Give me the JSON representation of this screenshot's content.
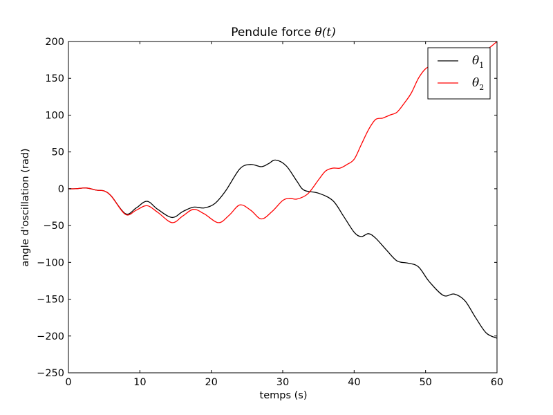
{
  "chart_data": {
    "type": "line",
    "title": "Pendule force θ(t)",
    "title_text": "Pendule force ",
    "title_math": "θ(t)",
    "xlabel": "temps (s)",
    "ylabel": "angle d'oscillation (rad)",
    "xlim": [
      0,
      60
    ],
    "ylim": [
      -250,
      200
    ],
    "xticks": [
      0,
      10,
      20,
      30,
      40,
      50,
      60
    ],
    "yticks": [
      200,
      150,
      100,
      50,
      0,
      -50,
      -100,
      -150,
      -200,
      -250
    ],
    "xtick_labels": [
      "0",
      "10",
      "20",
      "30",
      "40",
      "50",
      "60"
    ],
    "ytick_labels": [
      "200",
      "150",
      "100",
      "50",
      "0",
      "−50",
      "−100",
      "−150",
      "−200",
      "−250"
    ],
    "grid": false,
    "legend_position": "upper right",
    "series": [
      {
        "name": "θ1",
        "label_base": "θ",
        "label_sub": "1",
        "color": "#000000",
        "x": [
          0,
          1,
          2.5,
          4,
          5,
          6,
          8,
          9.5,
          11,
          12.5,
          14.5,
          16,
          17.5,
          19,
          20.5,
          22,
          24,
          25.5,
          27,
          28,
          29,
          30.5,
          32,
          33,
          35,
          37,
          38.5,
          40,
          41,
          42,
          43,
          44.5,
          46,
          47.5,
          49,
          50.5,
          52.5,
          54,
          55.5,
          57,
          58.5,
          60
        ],
        "y": [
          0,
          0,
          1,
          -2,
          -3,
          -10,
          -34,
          -26,
          -17,
          -28,
          -39,
          -31,
          -25,
          -26,
          -20,
          -3,
          27,
          33,
          30,
          34,
          39,
          31,
          10,
          -2,
          -6,
          -16,
          -37,
          -59,
          -65,
          -61,
          -67,
          -83,
          -98,
          -101,
          -106,
          -126,
          -145,
          -143,
          -152,
          -175,
          -196,
          -203
        ]
      },
      {
        "name": "θ2",
        "label_base": "θ",
        "label_sub": "2",
        "color": "#ff0000",
        "x": [
          0,
          1,
          2.5,
          4,
          5,
          6,
          8,
          9.5,
          11,
          12.5,
          14.5,
          16,
          17.5,
          19,
          21,
          22.5,
          24,
          25.5,
          27,
          28.5,
          30,
          31,
          32,
          33.5,
          35,
          36,
          37,
          38,
          39,
          40,
          41,
          42,
          43,
          44,
          45,
          46,
          47,
          48,
          49,
          50,
          51,
          52,
          53,
          54,
          55,
          56,
          57,
          58,
          59,
          60
        ],
        "y": [
          0,
          0,
          1,
          -2,
          -3,
          -10,
          -35,
          -29,
          -23,
          -32,
          -46,
          -37,
          -28,
          -34,
          -46,
          -36,
          -22,
          -29,
          -41,
          -31,
          -16,
          -13,
          -14,
          -7,
          12,
          24,
          28,
          28,
          33,
          40,
          60,
          80,
          94,
          96,
          100,
          104,
          116,
          130,
          150,
          163,
          168,
          172,
          173,
          175,
          177,
          179,
          181,
          185,
          192,
          200
        ]
      }
    ]
  }
}
